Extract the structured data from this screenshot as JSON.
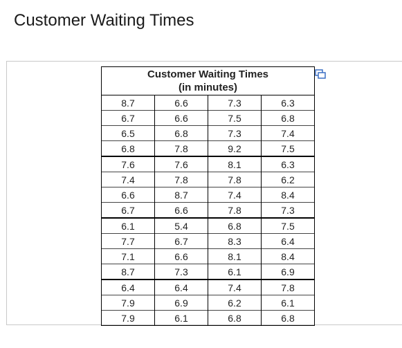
{
  "title": "Customer Waiting Times",
  "table": {
    "header": [
      "Customer Waiting Times",
      "(in minutes)"
    ],
    "rows": [
      [
        8.7,
        6.6,
        7.3,
        6.3
      ],
      [
        6.7,
        6.6,
        7.5,
        6.8
      ],
      [
        6.5,
        6.8,
        7.3,
        7.4
      ],
      [
        6.8,
        7.8,
        9.2,
        7.5
      ],
      [
        7.6,
        7.6,
        8.1,
        6.3
      ],
      [
        7.4,
        7.8,
        7.8,
        6.2
      ],
      [
        6.6,
        8.7,
        7.4,
        8.4
      ],
      [
        6.7,
        6.6,
        7.8,
        7.3
      ],
      [
        6.1,
        5.4,
        6.8,
        7.5
      ],
      [
        7.7,
        6.7,
        8.3,
        6.4
      ],
      [
        7.1,
        6.6,
        8.1,
        8.4
      ],
      [
        8.7,
        7.3,
        6.1,
        6.9
      ],
      [
        6.4,
        6.4,
        7.4,
        7.8
      ],
      [
        7.9,
        6.9,
        6.2,
        6.1
      ],
      [
        7.9,
        6.1,
        6.8,
        6.8
      ]
    ]
  }
}
